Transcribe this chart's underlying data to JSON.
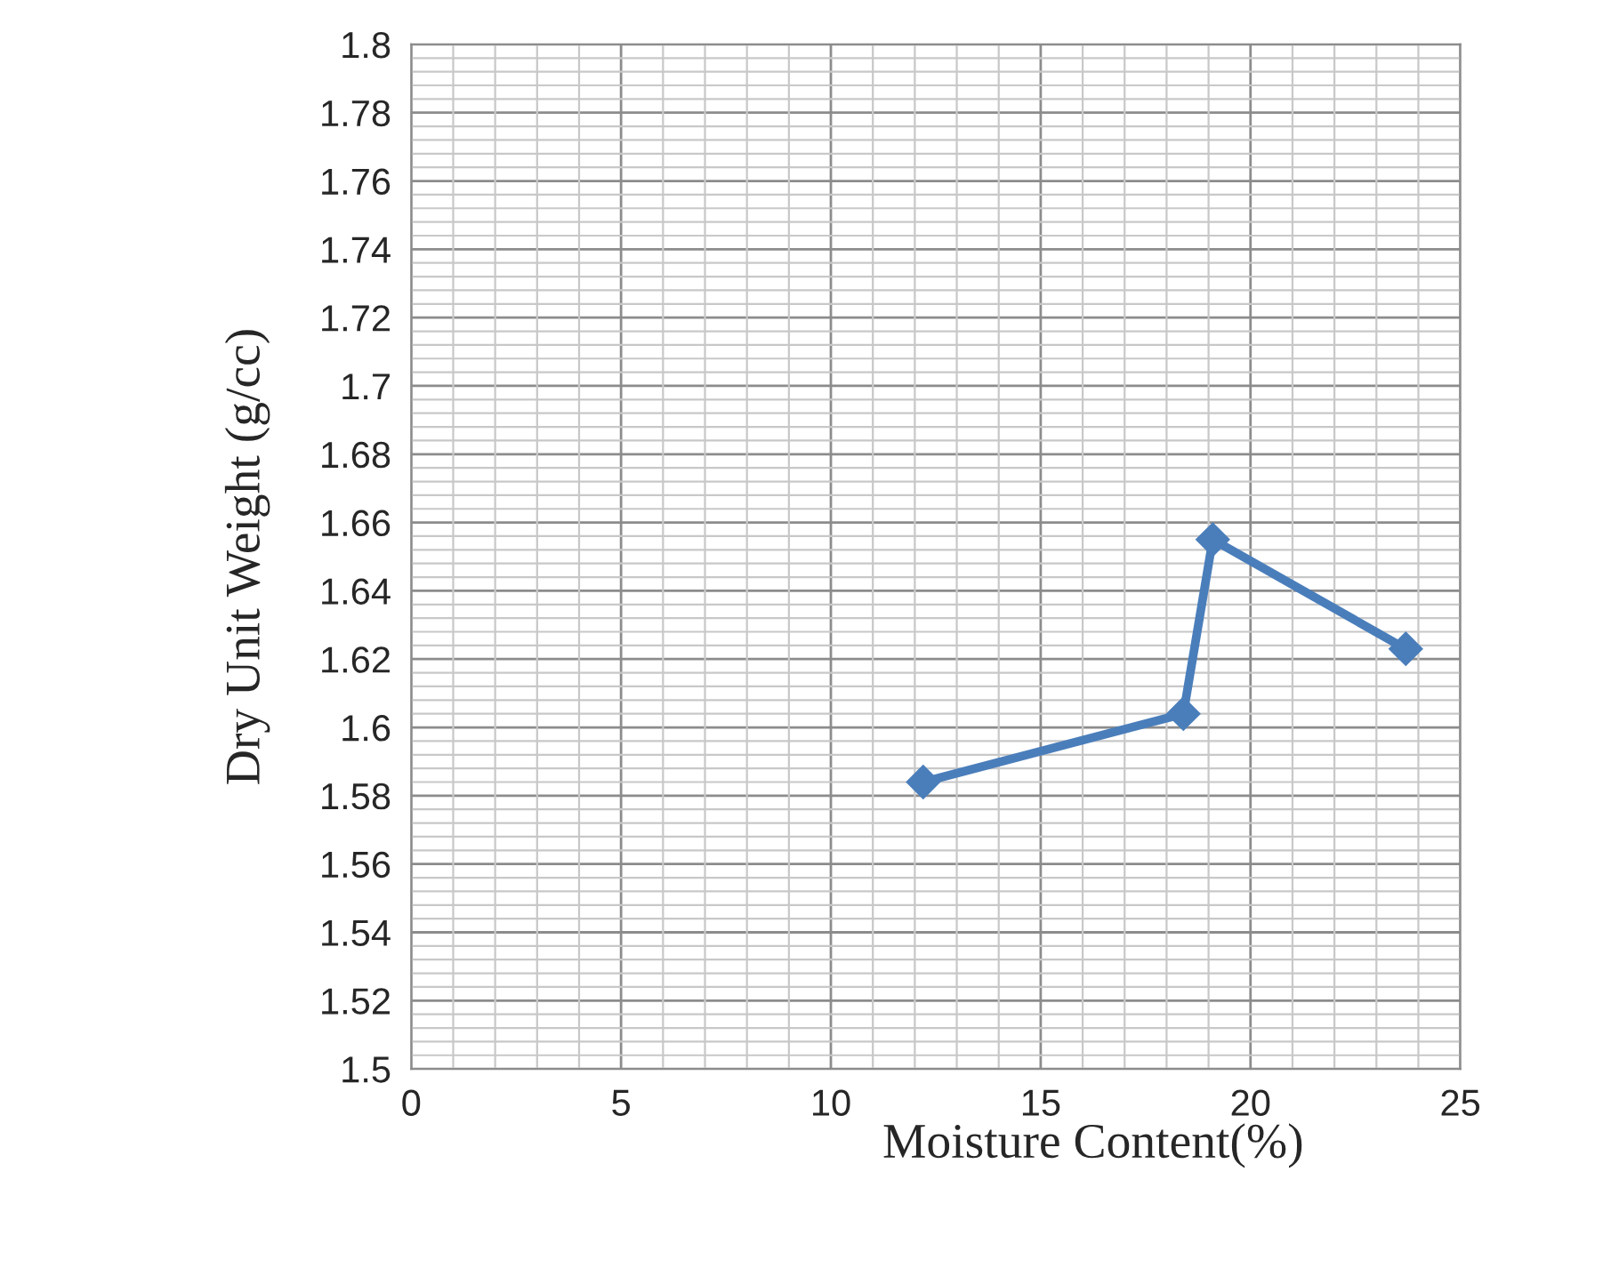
{
  "chart_data": {
    "type": "line",
    "xlabel": "Moisture Content(%)",
    "ylabel": "Dry Unit Weight (g/cc)",
    "series": [
      {
        "color": "#4a7ebb",
        "x": [
          12.2,
          18.4,
          19.1,
          23.7
        ],
        "values": [
          1.584,
          1.604,
          1.655,
          1.623
        ]
      }
    ],
    "xlim": [
      0,
      25
    ],
    "xticks": [
      0,
      5,
      10,
      15,
      20,
      25
    ],
    "ylim": [
      1.5,
      1.8
    ],
    "yticks": [
      {
        "value": 1.5,
        "label": "1.5"
      },
      {
        "value": 1.52,
        "label": "1.52"
      },
      {
        "value": 1.54,
        "label": "1.54"
      },
      {
        "value": 1.56,
        "label": "1.56"
      },
      {
        "value": 1.58,
        "label": "1.58"
      },
      {
        "value": 1.6,
        "label": "1.6"
      },
      {
        "value": 1.62,
        "label": "1.62"
      },
      {
        "value": 1.64,
        "label": "1.64"
      },
      {
        "value": 1.66,
        "label": "1.66"
      },
      {
        "value": 1.68,
        "label": "1.68"
      },
      {
        "value": 1.7,
        "label": "1.7"
      },
      {
        "value": 1.72,
        "label": "1.72"
      },
      {
        "value": 1.74,
        "label": "1.74"
      },
      {
        "value": 1.76,
        "label": "1.76"
      },
      {
        "value": 1.78,
        "label": "1.78"
      },
      {
        "value": 1.8,
        "label": "1.8"
      }
    ],
    "grid": true,
    "marker": "diamond",
    "line_style": "solid"
  }
}
